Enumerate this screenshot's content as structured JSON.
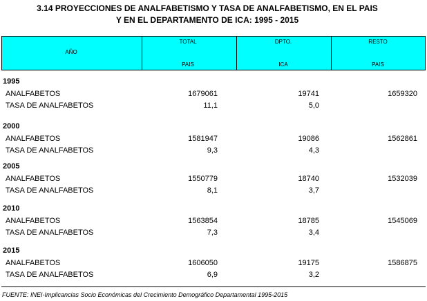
{
  "title": [
    "3.14  PROYECCIONES DE ANALFABETISMO Y TASA DE ANALFABETISMO, EN EL PAIS",
    "Y EN EL DEPARTAMENTO DE ICA: 1995 - 2015"
  ],
  "header": {
    "columns": [
      [
        "AÑO"
      ],
      [
        "TOTAL",
        "PAIS"
      ],
      [
        "DPTO.",
        "ICA"
      ],
      [
        "RESTO",
        "PAIS"
      ]
    ]
  },
  "groups": [
    {
      "year": "1995",
      "rows": [
        {
          "label": "ANALFABETOS",
          "values": [
            "1679061",
            "19741",
            "1659320"
          ]
        },
        {
          "label": "TASA DE ANALFABETOS",
          "values": [
            "11,1",
            "5,0"
          ]
        }
      ]
    },
    {
      "year": "2000",
      "rows": [
        {
          "label": "ANALFABETOS",
          "values": [
            "1581947",
            "19086",
            "1562861"
          ]
        },
        {
          "label": "TASA DE ANALFABETOS",
          "values": [
            "9,3",
            "4,3"
          ]
        }
      ]
    },
    {
      "year": "2005",
      "rows": [
        {
          "label": "ANALFABETOS",
          "values": [
            "1550779",
            "18740",
            "1532039"
          ]
        },
        {
          "label": "TASA DE ANALFABETOS",
          "values": [
            "8,1",
            "3,7"
          ]
        }
      ]
    },
    {
      "year": "2010",
      "rows": [
        {
          "label": "ANALFABETOS",
          "values": [
            "1563854",
            "18785",
            "1545069"
          ]
        },
        {
          "label": "TASA DE ANALFABETOS",
          "values": [
            "7,3",
            "3,4"
          ]
        }
      ]
    },
    {
      "year": "2015",
      "rows": [
        {
          "label": "ANALFABETOS",
          "values": [
            "1606050",
            "19175",
            "1586875"
          ]
        },
        {
          "label": "TASA DE ANALFABETOS",
          "values": [
            "6,9",
            "3,2"
          ]
        }
      ]
    }
  ],
  "footer": "FUENTE: INEI-Implicancias Socio Económicas del Crecimiento Demográfico Departamental 1995-2015"
}
